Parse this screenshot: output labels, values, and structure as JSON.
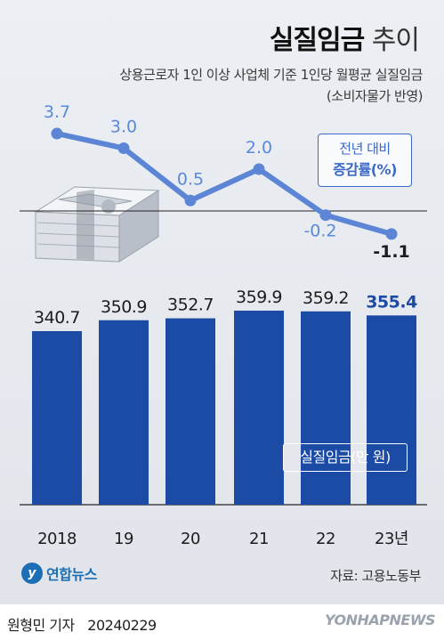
{
  "title": {
    "strong": "실질임금",
    "light": "추이"
  },
  "subtitle": {
    "line1": "상용근로자 1인 이상 사업체 기준 1인당 월평균 실질임금",
    "line2": "(소비자물가 반영)"
  },
  "rate_legend": {
    "line1": "전년 대비",
    "line2": "증감률(%)"
  },
  "bar_legend": "실질임금(만 원)",
  "logo": {
    "icon": "y",
    "text": "연합뉴스"
  },
  "source": "자료: 고용노동부",
  "reporter": "원형민 기자",
  "date": "20240229",
  "watermark": "YONHAPNEWS",
  "colors": {
    "bar": "#1c4ba5",
    "line": "#5c85d6",
    "rate_label": "#5a8ad8",
    "accent": "#3b69c9",
    "panel": "#e4e8ee"
  },
  "chart_data": [
    {
      "type": "bar",
      "categories": [
        "2018",
        "19",
        "20",
        "21",
        "22",
        "23년"
      ],
      "values": [
        340.7,
        350.9,
        352.7,
        359.9,
        359.2,
        355.4
      ],
      "labels": [
        "340.7",
        "350.9",
        "352.7",
        "359.9",
        "359.2",
        "355.4"
      ]
    },
    {
      "type": "line",
      "categories": [
        "2018",
        "19",
        "20",
        "21",
        "22",
        "23년"
      ],
      "values": [
        3.7,
        3.0,
        0.5,
        2.0,
        -0.2,
        -1.1
      ],
      "labels": [
        "3.7",
        "3.0",
        "0.5",
        "2.0",
        "-0.2",
        "-1.1"
      ]
    }
  ]
}
